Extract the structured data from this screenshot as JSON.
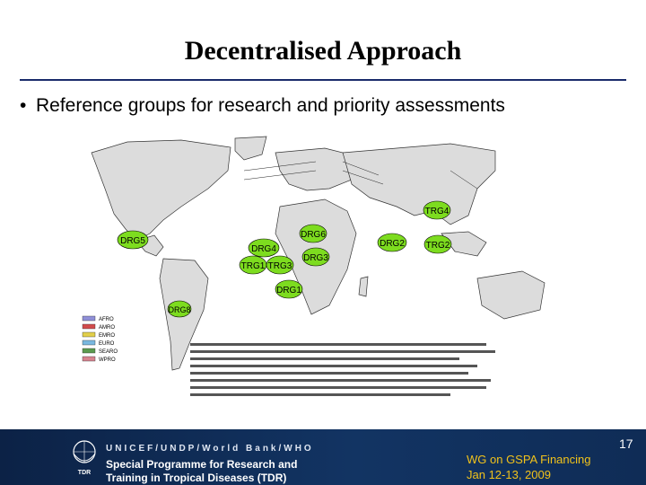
{
  "slide": {
    "title": "Decentralised Approach",
    "bullet": "Reference groups for research and priority assessments",
    "bullet_marker": "•"
  },
  "map": {
    "ocean_color": "#ffffff",
    "land_color": "#dcdcdc",
    "group_fill": "#7ddc1f",
    "groups": [
      {
        "label": "DRG5"
      },
      {
        "label": "DRG6"
      },
      {
        "label": "DRG4"
      },
      {
        "label": "DRG2"
      },
      {
        "label": "TRG4"
      },
      {
        "label": "TRG2"
      },
      {
        "label": "DRG3"
      },
      {
        "label": "TRG1"
      },
      {
        "label": "TRG3"
      },
      {
        "label": "DRG1"
      },
      {
        "label": "DRG8"
      }
    ],
    "legend": [
      {
        "label": "AFRO",
        "color": "#8f8fd8"
      },
      {
        "label": "AMRO",
        "color": "#d24b4b"
      },
      {
        "label": "EMRO",
        "color": "#e2cf4a"
      },
      {
        "label": "EURO",
        "color": "#79b8e0"
      },
      {
        "label": "SEARO",
        "color": "#5b9a4e"
      },
      {
        "label": "WPRO",
        "color": "#d7838e"
      }
    ]
  },
  "footer": {
    "org_line": "UNICEF/UNDP/World Bank/WHO",
    "programme_line1": "Special Programme for Research and",
    "programme_line2": "Training in Tropical Diseases (TDR)",
    "logo_text": "TDR",
    "event_line1": "WG on GSPA Financing",
    "event_line2": "Jan 12-13, 2009",
    "page_number": "17"
  }
}
